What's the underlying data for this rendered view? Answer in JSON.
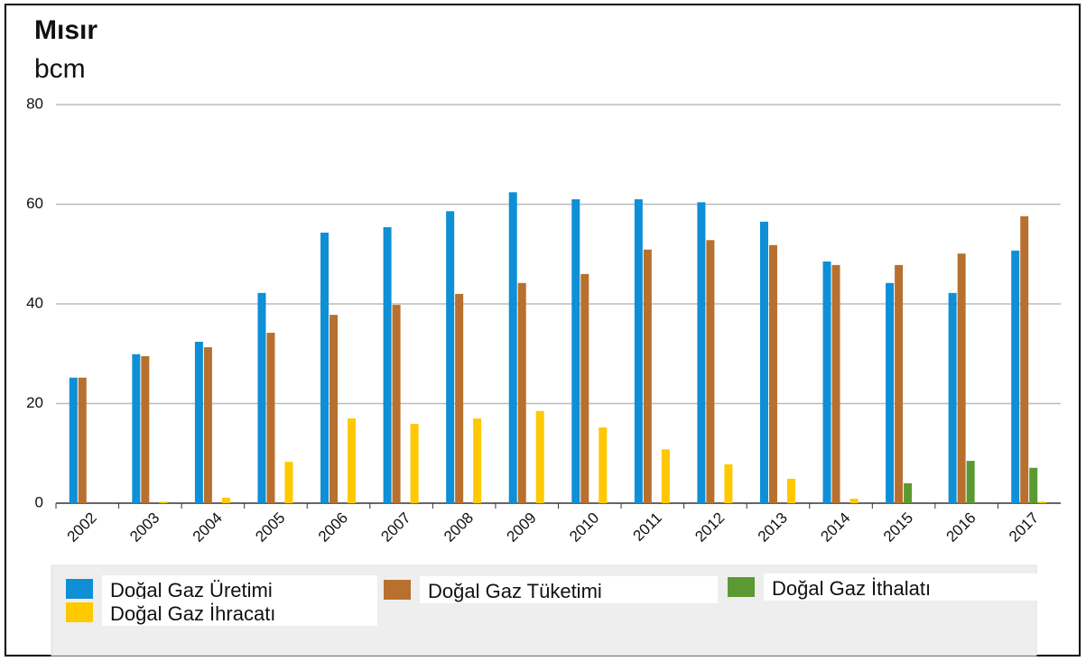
{
  "chart_data": {
    "type": "bar",
    "title": "Mısır",
    "subtitle": "bcm",
    "categories": [
      "2002",
      "2003",
      "2004",
      "2005",
      "2006",
      "2007",
      "2008",
      "2009",
      "2010",
      "2011",
      "2012",
      "2013",
      "2014",
      "2015",
      "2016",
      "2017"
    ],
    "series": [
      {
        "name": "Doğal Gaz Üretimi",
        "color": "#0e8fd6",
        "values": [
          25.2,
          29.9,
          32.4,
          42.2,
          54.3,
          55.4,
          58.6,
          62.4,
          61,
          61,
          60.4,
          56.5,
          48.5,
          44.2,
          42.2,
          50.7
        ]
      },
      {
        "name": "Doğal Gaz Tüketimi",
        "color": "#b8702e",
        "values": [
          25.2,
          29.5,
          31.3,
          34.2,
          37.8,
          39.8,
          42,
          44.2,
          46,
          50.9,
          52.8,
          51.8,
          47.8,
          47.8,
          50.1,
          57.6
        ]
      },
      {
        "name": "Doğal Gaz İthalatı",
        "color": "#5b9a33",
        "values": [
          0,
          0,
          0,
          0,
          0,
          0,
          0,
          0,
          0,
          0,
          0,
          0,
          0,
          4,
          8.5,
          7.1
        ]
      },
      {
        "name": "Doğal Gaz İhracatı",
        "color": "#ffc800",
        "values": [
          0,
          0.3,
          1.1,
          8.3,
          17,
          15.9,
          17,
          18.5,
          15.2,
          10.8,
          7.8,
          4.9,
          0.9,
          0,
          0,
          0.3
        ]
      }
    ],
    "ylim": [
      0,
      80
    ],
    "yticks": [
      0,
      20,
      40,
      60,
      80
    ],
    "grid": true
  }
}
